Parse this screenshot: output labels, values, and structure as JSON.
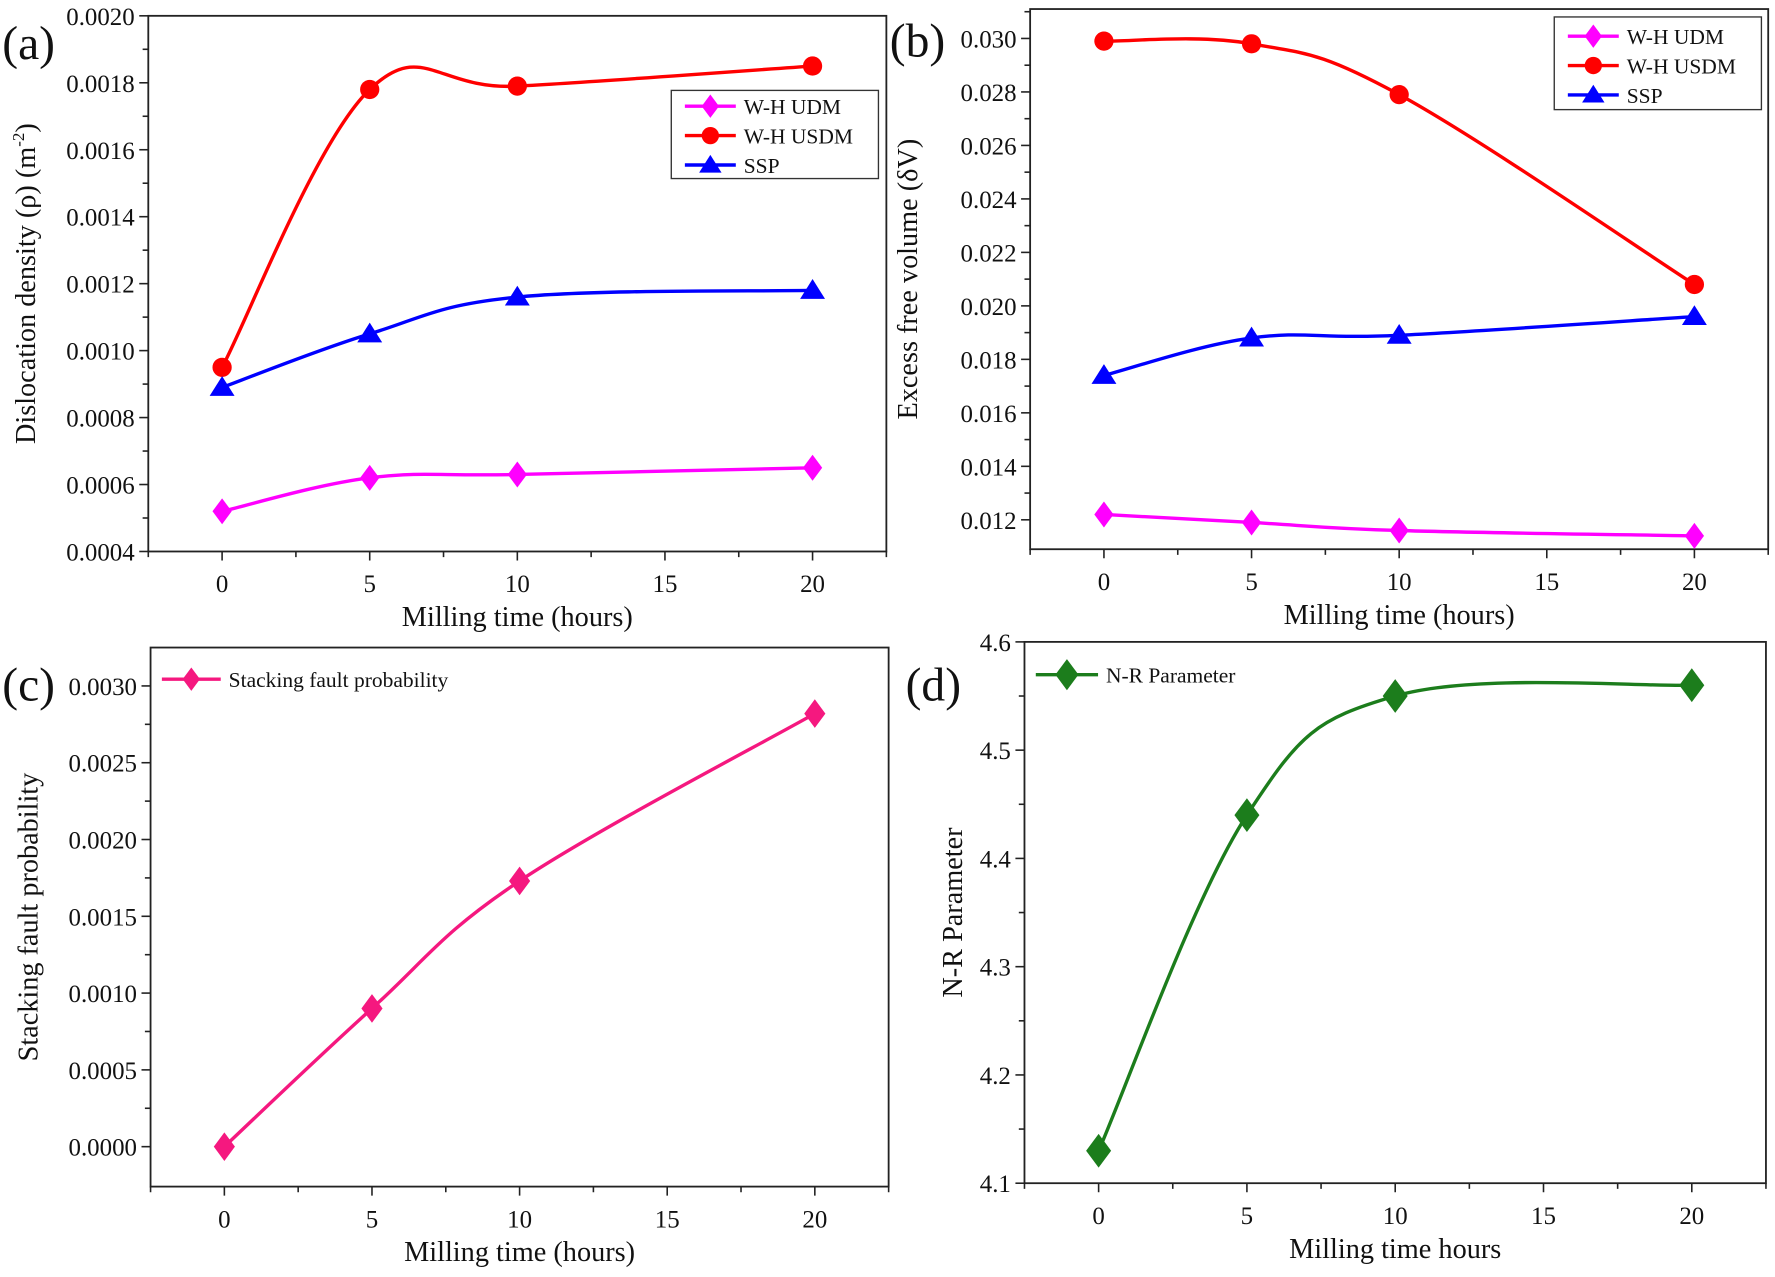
{
  "chart_data": [
    {
      "type": "line",
      "panel_label": "(a)",
      "xlabel": "Milling time (hours)",
      "ylabel": "Dislocation density (ρ)  (m",
      "ylabel_sup": "-2",
      "ylabel_end": ")",
      "xlim": [
        -2.5,
        22.5
      ],
      "ylim": [
        0.0004,
        0.002
      ],
      "xticks": [
        0,
        5,
        10,
        15,
        20
      ],
      "xtick_labels": [
        "0",
        "5",
        "10",
        "15",
        "20"
      ],
      "yticks": [
        0.0004,
        0.0006,
        0.0008,
        0.001,
        0.0012,
        0.0014,
        0.0016,
        0.0018,
        0.002
      ],
      "ytick_labels": [
        "0.0004",
        "0.0006",
        "0.0008",
        "0.0010",
        "0.0012",
        "0.0014",
        "0.0016",
        "0.0018",
        "0.0020"
      ],
      "legend_position": "top-right",
      "legend_boxed": true,
      "x": [
        0,
        5,
        10,
        20
      ],
      "series": [
        {
          "name": "W-H UDM",
          "marker": "diamond",
          "color": "#ff00ff",
          "values": [
            0.00052,
            0.00062,
            0.00063,
            0.00065
          ]
        },
        {
          "name": "W-H USDM",
          "marker": "circle",
          "color": "#ff0000",
          "values": [
            0.00095,
            0.00178,
            0.00179,
            0.00185
          ]
        },
        {
          "name": "SSP",
          "marker": "triangle",
          "color": "#0000ff",
          "values": [
            0.00089,
            0.00105,
            0.00116,
            0.00118
          ]
        }
      ]
    },
    {
      "type": "line",
      "panel_label": "(b)",
      "xlabel": "Milling time (hours)",
      "ylabel": "Excess free volume (δV)",
      "xlim": [
        -2.5,
        22.5
      ],
      "ylim": [
        0.0109,
        0.0311
      ],
      "xticks": [
        0,
        5,
        10,
        15,
        20
      ],
      "xtick_labels": [
        "0",
        "5",
        "10",
        "15",
        "20"
      ],
      "yticks": [
        0.012,
        0.014,
        0.016,
        0.018,
        0.02,
        0.022,
        0.024,
        0.026,
        0.028,
        0.03
      ],
      "ytick_labels": [
        "0.012",
        "0.014",
        "0.016",
        "0.018",
        "0.020",
        "0.022",
        "0.024",
        "0.026",
        "0.028",
        "0.030"
      ],
      "legend_position": "top-right",
      "legend_boxed": true,
      "x": [
        0,
        5,
        10,
        20
      ],
      "series": [
        {
          "name": "W-H UDM",
          "marker": "diamond",
          "color": "#ff00ff",
          "values": [
            0.0122,
            0.0119,
            0.0116,
            0.0114
          ]
        },
        {
          "name": "W-H USDM",
          "marker": "circle",
          "color": "#ff0000",
          "values": [
            0.0299,
            0.0298,
            0.0279,
            0.0208
          ]
        },
        {
          "name": "SSP",
          "marker": "triangle",
          "color": "#0000ff",
          "values": [
            0.0174,
            0.0188,
            0.0189,
            0.0196
          ]
        }
      ]
    },
    {
      "type": "line",
      "panel_label": "(c)",
      "xlabel": "Milling time (hours)",
      "ylabel": "Stacking fault probability",
      "xlim": [
        -2.5,
        22.5
      ],
      "ylim": [
        -0.00026,
        0.00325
      ],
      "xticks": [
        0,
        5,
        10,
        15,
        20
      ],
      "xtick_labels": [
        "0",
        "5",
        "10",
        "15",
        "20"
      ],
      "yticks": [
        0.0,
        0.0005,
        0.001,
        0.0015,
        0.002,
        0.0025,
        0.003
      ],
      "ytick_labels": [
        "0.0000",
        "0.0005",
        "0.0010",
        "0.0015",
        "0.0020",
        "0.0025",
        "0.0030"
      ],
      "legend_position": "top-left",
      "legend_boxed": false,
      "x": [
        0,
        5,
        10,
        20
      ],
      "series": [
        {
          "name": "Stacking fault probability",
          "marker": "diamond",
          "color": "#f5187f",
          "values": [
            0.0,
            0.0009,
            0.00173,
            0.00282
          ]
        }
      ]
    },
    {
      "type": "line",
      "panel_label": "(d)",
      "xlabel": "Milling time hours",
      "ylabel": "N-R Parameter",
      "xlim": [
        -2.5,
        22.5
      ],
      "ylim": [
        4.1,
        4.6
      ],
      "xticks": [
        0,
        5,
        10,
        15,
        20
      ],
      "xtick_labels": [
        "0",
        "5",
        "10",
        "15",
        "20"
      ],
      "yticks": [
        4.1,
        4.2,
        4.3,
        4.4,
        4.5,
        4.6
      ],
      "ytick_labels": [
        "4.1",
        "4.2",
        "4.3",
        "4.4",
        "4.5",
        "4.6"
      ],
      "legend_position": "top-left",
      "legend_boxed": false,
      "x": [
        0,
        5,
        10,
        20
      ],
      "series": [
        {
          "name": "N-R Parameter",
          "marker": "diamond",
          "color": "#1c7d1c",
          "values": [
            4.13,
            4.44,
            4.55,
            4.56
          ]
        }
      ]
    }
  ]
}
